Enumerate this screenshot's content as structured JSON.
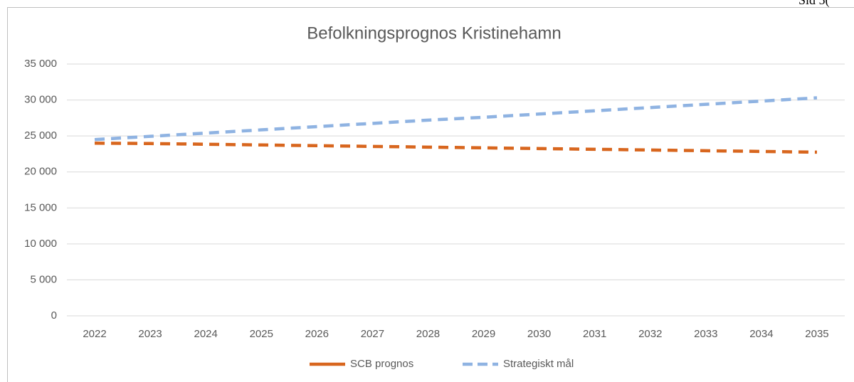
{
  "page_label": "Sid 5(",
  "chart_data": {
    "type": "line",
    "title": "Befolkningsprognos Kristinehamn",
    "categories": [
      "2022",
      "2023",
      "2024",
      "2025",
      "2026",
      "2027",
      "2028",
      "2029",
      "2030",
      "2031",
      "2032",
      "2033",
      "2034",
      "2035"
    ],
    "series": [
      {
        "name": "SCB prognos",
        "color": "#d8661e",
        "values": [
          24000,
          23950,
          23850,
          23750,
          23650,
          23550,
          23450,
          23350,
          23250,
          23150,
          23050,
          22950,
          22850,
          22750
        ]
      },
      {
        "name": "Strategiskt mål",
        "color": "#8fb3e2",
        "values": [
          24500,
          24950,
          25400,
          25850,
          26300,
          26750,
          27200,
          27600,
          28050,
          28500,
          28950,
          29400,
          29850,
          30300
        ]
      }
    ],
    "ylim": [
      0,
      35000
    ],
    "yticks": [
      0,
      {
        "value": 5000,
        "label": "5 000"
      },
      {
        "value": 10000,
        "label": "10 000"
      },
      {
        "value": 15000,
        "label": "15 000"
      },
      {
        "value": 20000,
        "label": "20 000"
      },
      {
        "value": 25000,
        "label": "25 000"
      },
      {
        "value": 30000,
        "label": "30 000"
      },
      {
        "value": 35000,
        "label": "35 000"
      }
    ],
    "grid": true,
    "legend": "bottom"
  }
}
